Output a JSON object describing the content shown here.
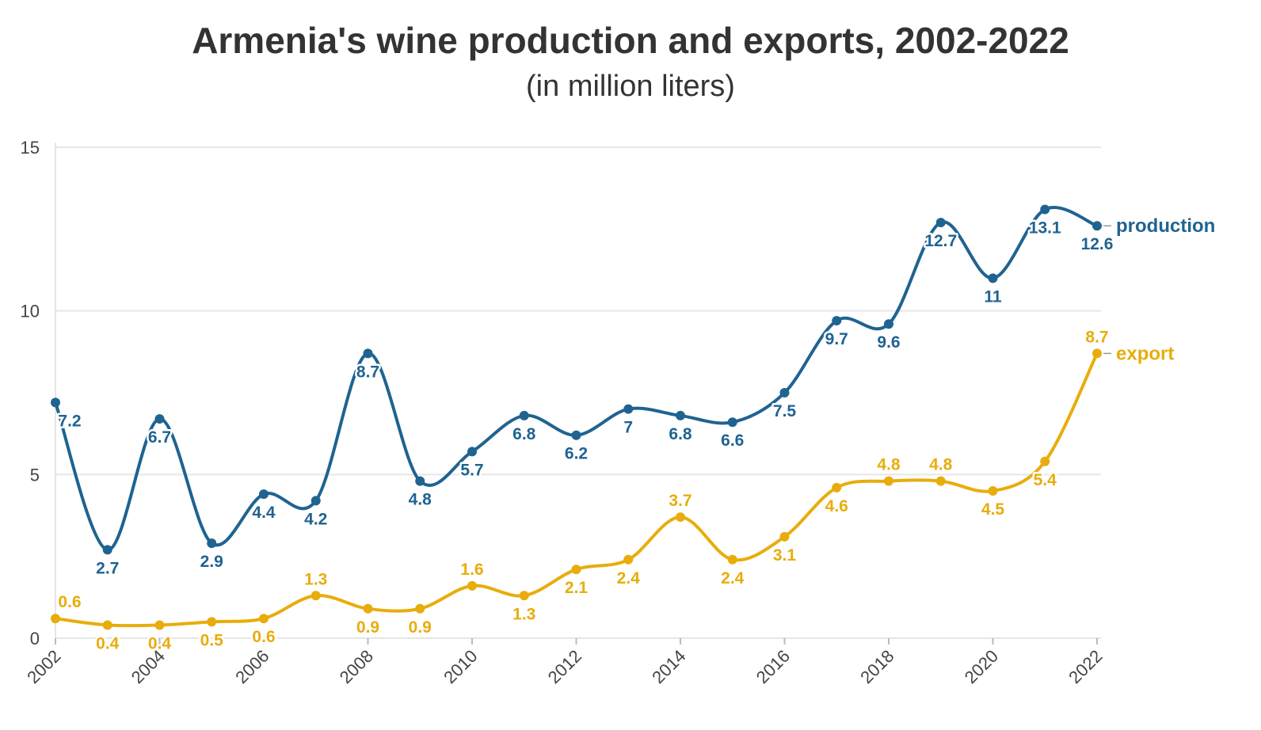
{
  "header": {
    "title": "Armenia's wine production and exports, 2002-2022",
    "subtitle": "(in million liters)"
  },
  "chart_data": {
    "type": "line",
    "title": "Armenia's wine production and exports, 2002-2022",
    "subtitle": "(in million liters)",
    "x": [
      2002,
      2003,
      2004,
      2005,
      2006,
      2007,
      2008,
      2009,
      2010,
      2011,
      2012,
      2013,
      2014,
      2015,
      2016,
      2017,
      2018,
      2019,
      2020,
      2021,
      2022
    ],
    "x_tick_labels": [
      "2002",
      "2004",
      "2006",
      "2008",
      "2010",
      "2012",
      "2014",
      "2016",
      "2018",
      "2020",
      "2022"
    ],
    "ylim": [
      0,
      15
    ],
    "y_tick_labels": [
      "0",
      "5",
      "10",
      "15"
    ],
    "grid": true,
    "series": [
      {
        "name": "production",
        "color": "#1f6391",
        "values": [
          7.2,
          2.7,
          6.7,
          2.9,
          4.4,
          4.2,
          8.7,
          4.8,
          5.7,
          6.8,
          6.2,
          7,
          6.8,
          6.6,
          7.5,
          9.7,
          9.6,
          12.7,
          11,
          13.1,
          12.6
        ],
        "labels": [
          "7.2",
          "2.7",
          "6.7",
          "2.9",
          "4.4",
          "4.2",
          "8.7",
          "4.8",
          "5.7",
          "6.8",
          "6.2",
          "7",
          "6.8",
          "6.6",
          "7.5",
          "9.7",
          "9.6",
          "12.7",
          "11",
          "13.1",
          "12.6"
        ]
      },
      {
        "name": "export",
        "color": "#e8ad0c",
        "values": [
          0.6,
          0.4,
          0.4,
          0.5,
          0.6,
          1.3,
          0.9,
          0.9,
          1.6,
          1.3,
          2.1,
          2.4,
          3.7,
          2.4,
          3.1,
          4.6,
          4.8,
          4.8,
          4.5,
          5.4,
          8.7
        ],
        "labels": [
          "0.6",
          "0.4",
          "0.4",
          "0.5",
          "0.6",
          "1.3",
          "0.9",
          "0.9",
          "1.6",
          "1.3",
          "2.1",
          "2.4",
          "3.7",
          "2.4",
          "3.1",
          "4.6",
          "4.8",
          "4.8",
          "4.5",
          "5.4",
          "8.7"
        ]
      }
    ]
  }
}
